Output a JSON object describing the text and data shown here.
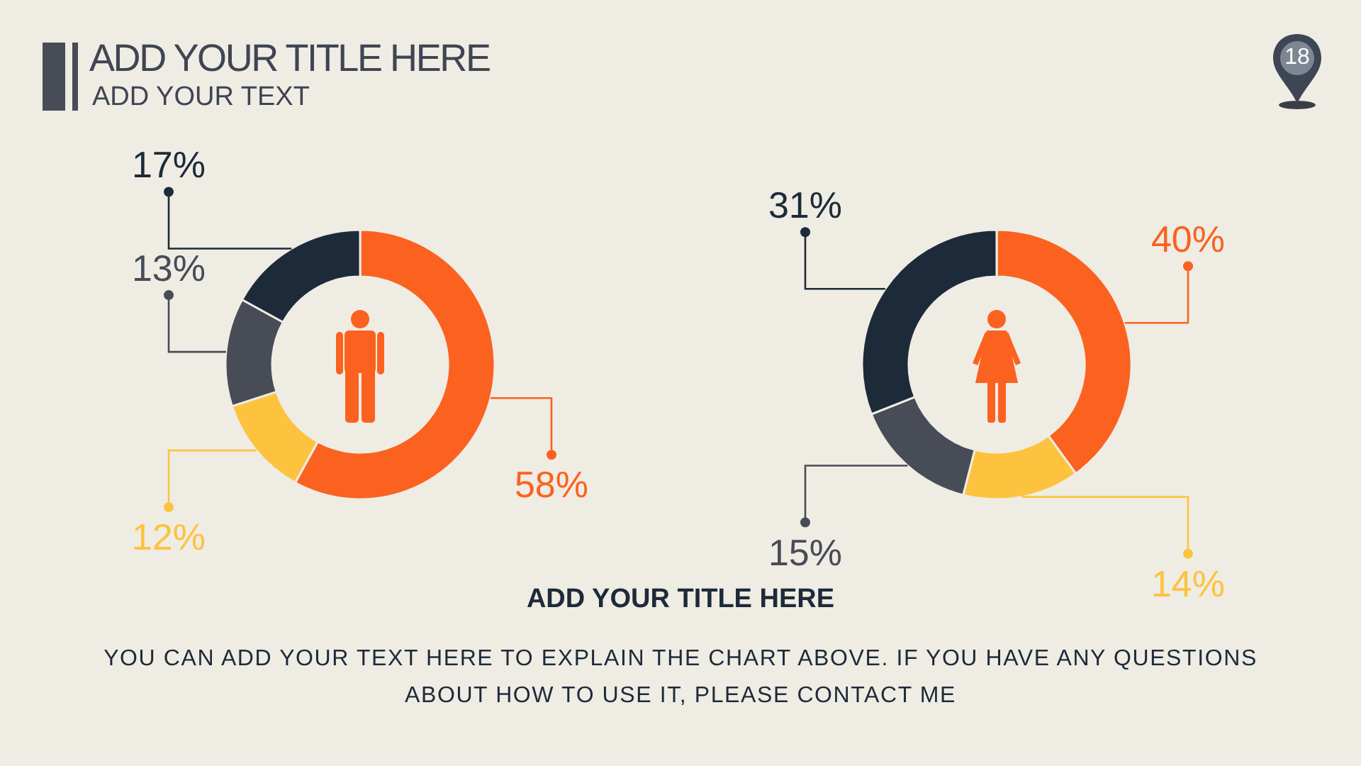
{
  "chart_data": [
    {
      "type": "other",
      "title": "ADD YOUR TITLE HERE",
      "subtitle": "ADD YOUR TEXT",
      "annotations": [
        "18"
      ]
    },
    {
      "type": "donut",
      "categories": [
        null,
        null,
        null,
        null
      ],
      "values": [
        58,
        12,
        13,
        17
      ],
      "colors": [
        "#fb621f",
        "#fdc33f",
        "#474c57",
        "#1d2a39"
      ],
      "value_labels": [
        "58%",
        "12%",
        "13%",
        "17%"
      ]
    },
    {
      "type": "donut",
      "categories": [
        null,
        null,
        null,
        null
      ],
      "values": [
        40,
        14,
        15,
        31
      ],
      "colors": [
        "#fb621f",
        "#fdc33f",
        "#474c57",
        "#1d2a39"
      ],
      "value_labels": [
        "40%",
        "14%",
        "15%",
        "31%"
      ]
    },
    {
      "type": "other",
      "title": "ADD YOUR TITLE HERE",
      "annotations": [
        "YOU CAN ADD YOUR TEXT HERE TO EXPLAIN THE CHART ABOVE. IF YOU HAVE ANY QUESTIONS ABOUT HOW TO USE IT, PLEASE CONTACT ME"
      ]
    }
  ]
}
